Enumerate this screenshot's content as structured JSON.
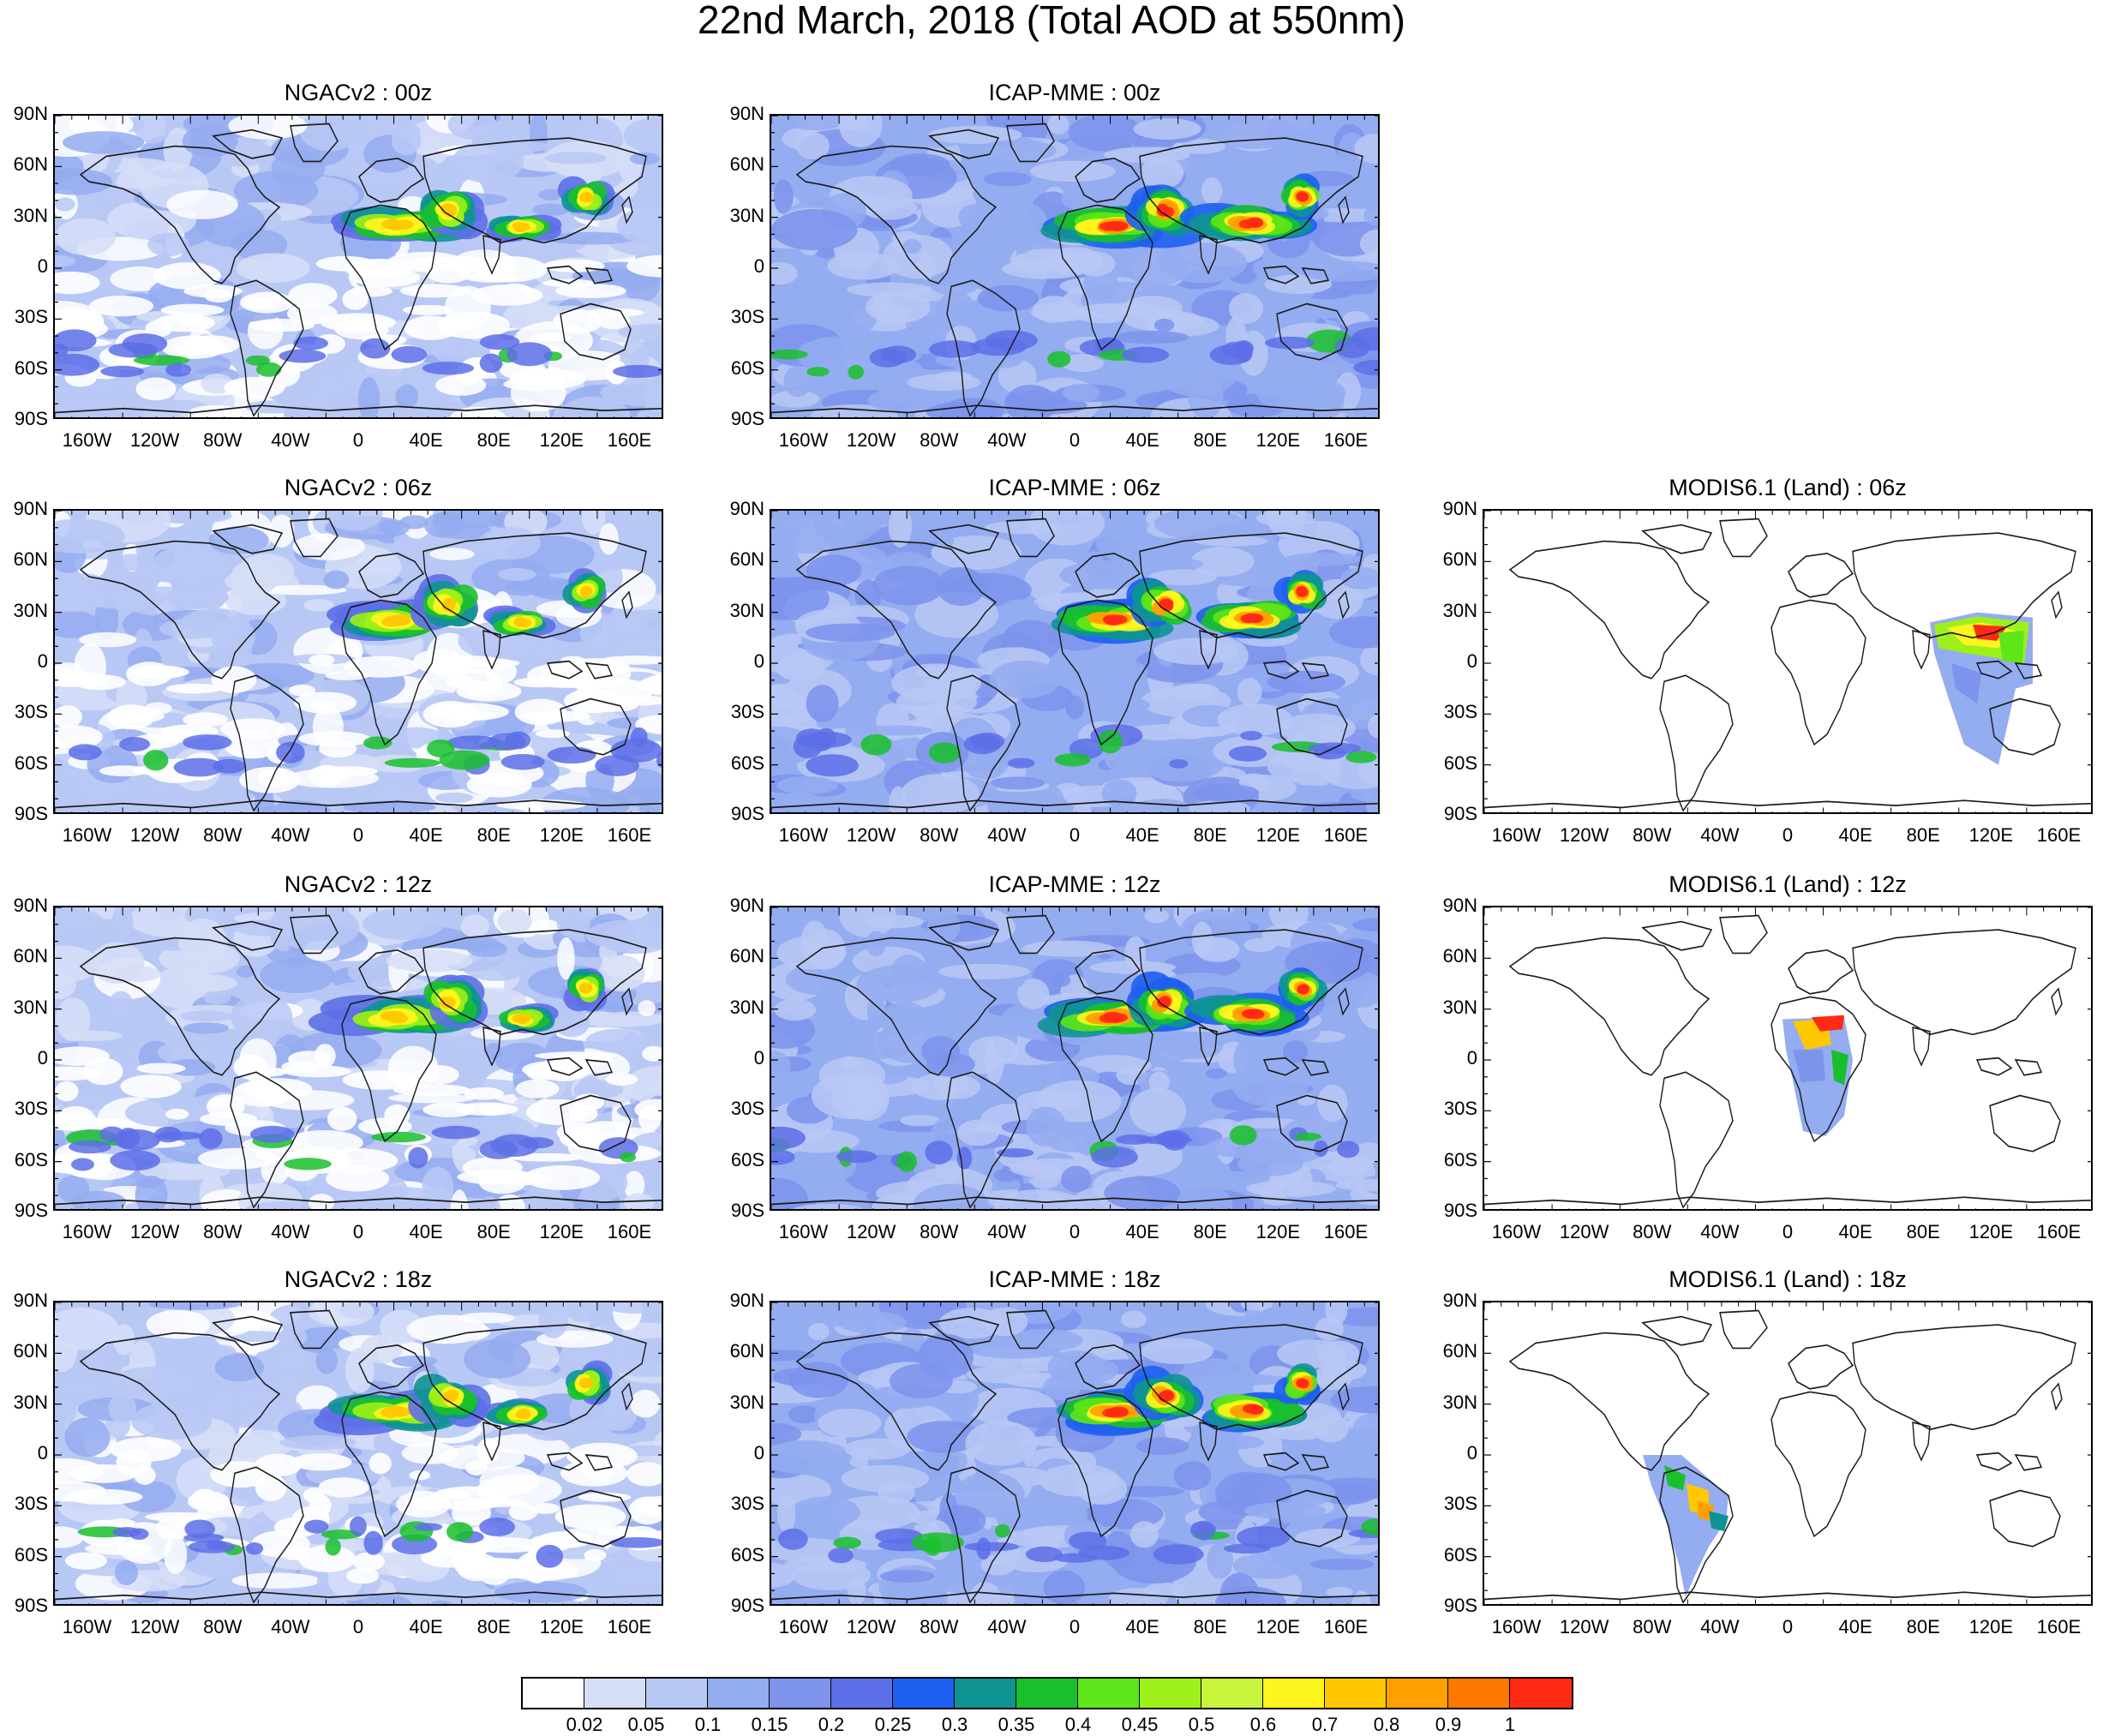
{
  "title": "22nd March, 2018 (Total AOD at 550nm)",
  "latitude_labels": [
    "90N",
    "60N",
    "30N",
    "0",
    "30S",
    "60S",
    "90S"
  ],
  "longitude_labels": [
    "160W",
    "120W",
    "80W",
    "40W",
    "0",
    "40E",
    "80E",
    "120E",
    "160E"
  ],
  "panels": [
    {
      "title": "NGACv2 : 00z",
      "model": "ngac"
    },
    {
      "title": "ICAP-MME : 00z",
      "model": "icap"
    },
    {
      "title": "NGACv2 : 06z",
      "model": "ngac"
    },
    {
      "title": "ICAP-MME : 06z",
      "model": "icap"
    },
    {
      "title": "MODIS6.1 (Land) : 06z",
      "model": "modis",
      "swath": "asia"
    },
    {
      "title": "NGACv2 : 12z",
      "model": "ngac"
    },
    {
      "title": "ICAP-MME : 12z",
      "model": "icap"
    },
    {
      "title": "MODIS6.1 (Land) : 12z",
      "model": "modis",
      "swath": "africa"
    },
    {
      "title": "NGACv2 : 18z",
      "model": "ngac"
    },
    {
      "title": "ICAP-MME : 18z",
      "model": "icap"
    },
    {
      "title": "MODIS6.1 (Land) : 18z",
      "model": "modis",
      "swath": "samerica"
    }
  ],
  "colorbar": {
    "colors": [
      "#ffffff",
      "#d6def7",
      "#b8c8f5",
      "#94acf0",
      "#7d93ec",
      "#5d6fe8",
      "#1e5ff0",
      "#0e9393",
      "#19c02c",
      "#5ee61a",
      "#9ef01a",
      "#c8f53c",
      "#fff51e",
      "#ffc800",
      "#ffa000",
      "#ff7800",
      "#ff2a14"
    ],
    "labels": [
      "0.02",
      "0.05",
      "0.1",
      "0.15",
      "0.2",
      "0.25",
      "0.3",
      "0.35",
      "0.4",
      "0.45",
      "0.5",
      "0.6",
      "0.7",
      "0.8",
      "0.9",
      "1"
    ]
  }
}
